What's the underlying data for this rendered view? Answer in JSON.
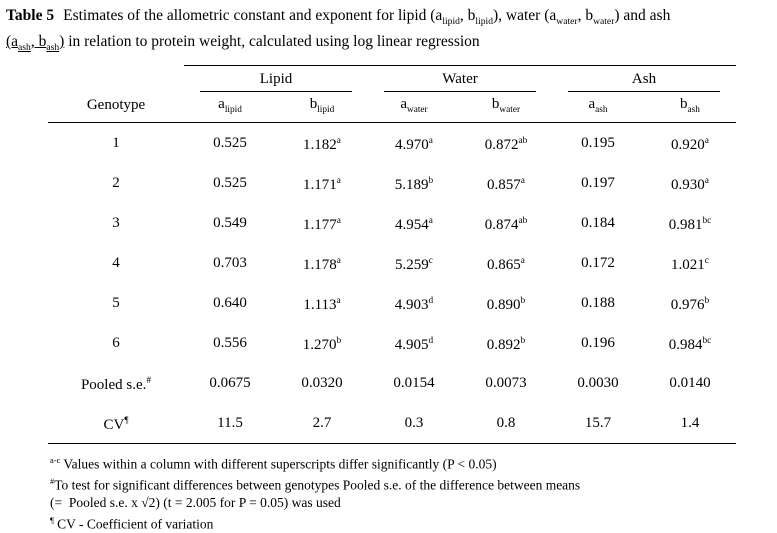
{
  "colors": {
    "text": "#000000",
    "background": "#ffffff"
  },
  "caption": {
    "label": "Table 5",
    "lines": [
      [
        {
          "t": "Estimates of the allometric constant and exponent for lipid (a"
        },
        {
          "t": "lipid",
          "sub": true
        },
        {
          "t": ", b"
        },
        {
          "t": "lipid",
          "sub": true
        },
        {
          "t": "), water (a"
        },
        {
          "t": "water",
          "sub": true
        },
        {
          "t": ", b"
        },
        {
          "t": "water",
          "sub": true
        },
        {
          "t": ") and ash"
        }
      ],
      [
        {
          "t": "(a",
          "u": true
        },
        {
          "t": "ash",
          "sub": true,
          "u": true
        },
        {
          "t": ", b",
          "u": true
        },
        {
          "t": "ash",
          "sub": true,
          "u": true
        },
        {
          "t": ")",
          "u": true
        },
        {
          "t": " in relation to protein weight, calculated using log linear regression"
        }
      ]
    ]
  },
  "table": {
    "genotype_header": "Genotype",
    "groups": [
      "Lipid",
      "Water",
      "Ash"
    ],
    "columns": [
      "a_lipid",
      "b_lipid",
      "a_water",
      "b_water",
      "a_ash",
      "b_ash"
    ],
    "rows": [
      {
        "label": "1",
        "values": [
          "0.525",
          "1.182^a",
          "4.970^a",
          "0.872^ab",
          "0.195",
          "0.920^a"
        ]
      },
      {
        "label": "2",
        "values": [
          "0.525",
          "1.171^a",
          "5.189^b",
          "0.857^a",
          "0.197",
          "0.930^a"
        ]
      },
      {
        "label": "3",
        "values": [
          "0.549",
          "1.177^a",
          "4.954^a",
          "0.874^ab",
          "0.184",
          "0.981^bc"
        ]
      },
      {
        "label": "4",
        "values": [
          "0.703",
          "1.178^a",
          "5.259^c",
          "0.865^a",
          "0.172",
          "1.021^c"
        ]
      },
      {
        "label": "5",
        "values": [
          "0.640",
          "1.113^a",
          "4.903^d",
          "0.890^b",
          "0.188",
          "0.976^b"
        ]
      },
      {
        "label": "6",
        "values": [
          "0.556",
          "1.270^b",
          "4.905^d",
          "0.892^b",
          "0.196",
          "0.984^bc"
        ]
      },
      {
        "label": "Pooled s.e.^#",
        "values": [
          "0.0675",
          "0.0320",
          "0.0154",
          "0.0073",
          "0.0030",
          "0.0140"
        ]
      },
      {
        "label": "CV^¶",
        "values": [
          "11.5",
          "2.7",
          "0.3",
          "0.8",
          "15.7",
          "1.4"
        ]
      }
    ]
  },
  "footnotes": [
    {
      "sup": "a-c",
      "text": " Values within a column with different superscripts differ significantly (P < 0.05)"
    },
    {
      "sup": "#",
      "text": "To test for significant differences between genotypes Pooled s.e. of the difference between means\n(=  Pooled s.e. x √2) (t = 2.005 for P = 0.05) was used"
    },
    {
      "sup": "¶",
      "text": " CV - Coefficient of variation"
    }
  ]
}
